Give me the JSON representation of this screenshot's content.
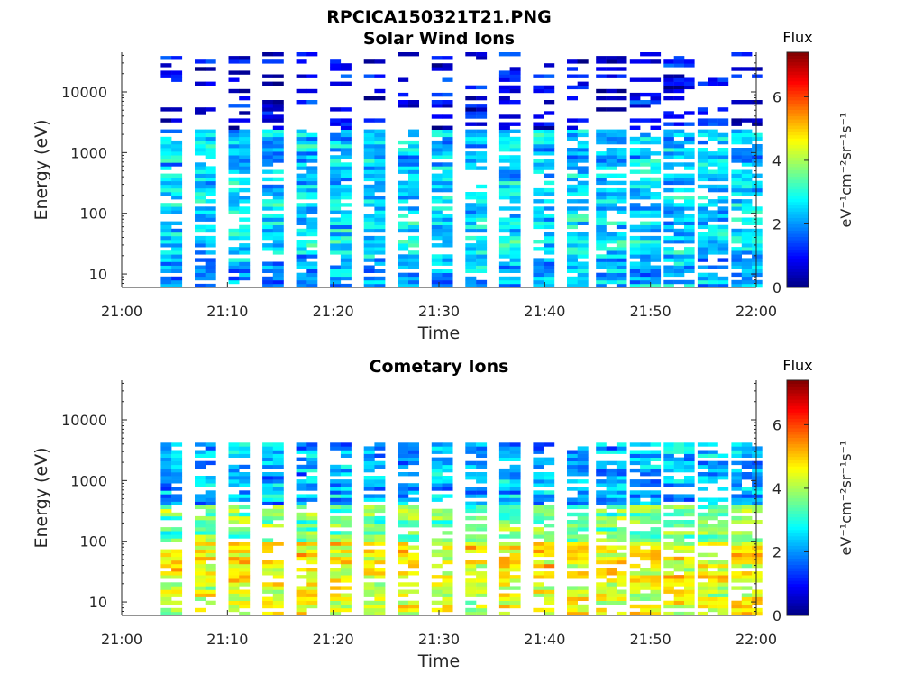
{
  "figure_title": "RPCICA150321T21.PNG",
  "chart_data": [
    {
      "type": "heatmap",
      "title": "Solar Wind Ions",
      "xlabel": "Time",
      "ylabel": "Energy (eV)",
      "x_ticks": [
        "21:00",
        "21:10",
        "21:20",
        "21:30",
        "21:40",
        "21:50",
        "22:00"
      ],
      "y_ticks": [
        "10",
        "100",
        "1000",
        "10000"
      ],
      "xlim": [
        "21:00",
        "22:00"
      ],
      "ylim": [
        6,
        45000
      ],
      "y_scale": "log",
      "colorbar": {
        "title": "Flux",
        "label": "eV⁻¹cm⁻²sr⁻¹s⁻¹",
        "ticks": [
          "0",
          "2",
          "4",
          "6"
        ],
        "range": [
          0,
          7.4
        ],
        "colormap": "jet"
      },
      "scan_centers_min": [
        4.7,
        7.9,
        11.1,
        14.3,
        17.5,
        20.7,
        23.9,
        27.1,
        30.3,
        33.5,
        36.7,
        39.9,
        43.1,
        46.3,
        49.5,
        52.7,
        55.9,
        59.1
      ],
      "flux_by_energy_band": [
        {
          "energy_range_eV": "6-20",
          "typical_flux": 2.2
        },
        {
          "energy_range_eV": "20-60",
          "typical_flux": 2.6
        },
        {
          "energy_range_eV": "60-300",
          "typical_flux": 2.5
        },
        {
          "energy_range_eV": "300-2500",
          "typical_flux": 2.4
        },
        {
          "energy_range_eV": "2500-45000",
          "typical_flux": 0.8
        }
      ]
    },
    {
      "type": "heatmap",
      "title": "Cometary Ions",
      "xlabel": "Time",
      "ylabel": "Energy (eV)",
      "x_ticks": [
        "21:00",
        "21:10",
        "21:20",
        "21:30",
        "21:40",
        "21:50",
        "22:00"
      ],
      "y_ticks": [
        "10",
        "100",
        "1000",
        "10000"
      ],
      "xlim": [
        "21:00",
        "22:00"
      ],
      "ylim": [
        6,
        45000
      ],
      "y_scale": "log",
      "colorbar": {
        "title": "Flux",
        "label": "eV⁻¹cm⁻²sr⁻¹s⁻¹",
        "ticks": [
          "0",
          "2",
          "4",
          "6"
        ],
        "range": [
          0,
          7.4
        ],
        "colormap": "jet"
      },
      "scan_centers_min": [
        4.7,
        7.9,
        11.1,
        14.3,
        17.5,
        20.7,
        23.9,
        27.1,
        30.3,
        33.5,
        36.7,
        39.9,
        43.1,
        46.3,
        49.5,
        52.7,
        55.9,
        59.1
      ],
      "flux_by_energy_band": [
        {
          "energy_range_eV": "6-20",
          "typical_flux": 4.4
        },
        {
          "energy_range_eV": "20-100",
          "typical_flux": 4.6
        },
        {
          "energy_range_eV": "100-400",
          "typical_flux": 3.6
        },
        {
          "energy_range_eV": "400-4000",
          "typical_flux": 2.2
        }
      ]
    }
  ]
}
